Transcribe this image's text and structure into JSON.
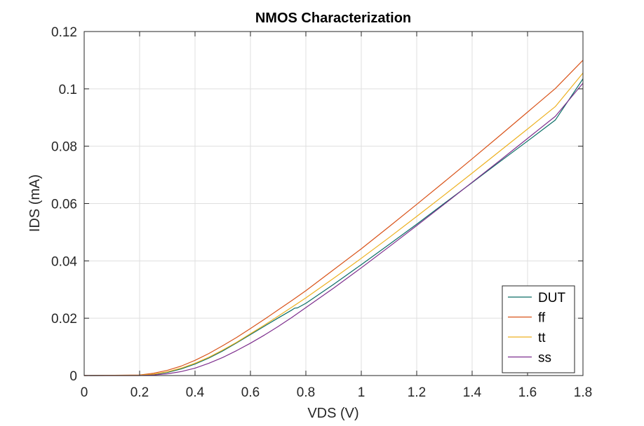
{
  "chart_data": {
    "type": "line",
    "title": "NMOS Characterization",
    "xlabel": "VDS (V)",
    "ylabel": "IDS (mA)",
    "xlim": [
      0,
      1.8
    ],
    "ylim": [
      0,
      0.12
    ],
    "xticks": [
      0,
      0.2,
      0.4,
      0.6,
      0.8,
      1,
      1.2,
      1.4,
      1.6,
      1.8
    ],
    "xtick_labels": [
      "0",
      "0.2",
      "0.4",
      "0.6",
      "0.8",
      "1",
      "1.2",
      "1.4",
      "1.6",
      "1.8"
    ],
    "yticks": [
      0,
      0.02,
      0.04,
      0.06,
      0.08,
      0.1,
      0.12
    ],
    "ytick_labels": [
      "0",
      "0.02",
      "0.04",
      "0.06",
      "0.08",
      "0.1",
      "0.12"
    ],
    "grid": true,
    "legend_position": "bottom-right",
    "series": [
      {
        "name": "DUT",
        "color": "#0b6e66",
        "x": [
          0,
          0.2,
          0.25,
          0.3,
          0.35,
          0.4,
          0.45,
          0.5,
          0.55,
          0.6,
          0.65,
          0.7,
          0.75,
          0.76,
          0.77,
          0.8,
          0.9,
          1.0,
          1.1,
          1.2,
          1.3,
          1.4,
          1.5,
          1.6,
          1.7,
          1.8
        ],
        "y": [
          0,
          0.0001,
          0.0004,
          0.0011,
          0.0023,
          0.004,
          0.0061,
          0.0086,
          0.0114,
          0.0143,
          0.0172,
          0.0201,
          0.0229,
          0.0235,
          0.0236,
          0.0252,
          0.0318,
          0.0387,
          0.0457,
          0.0528,
          0.0601,
          0.0673,
          0.0746,
          0.0818,
          0.0891,
          0.1035
        ]
      },
      {
        "name": "ff",
        "color": "#d95319",
        "x": [
          0,
          0.2,
          0.25,
          0.3,
          0.35,
          0.4,
          0.45,
          0.5,
          0.55,
          0.6,
          0.65,
          0.7,
          0.75,
          0.8,
          0.9,
          1.0,
          1.1,
          1.2,
          1.3,
          1.4,
          1.5,
          1.6,
          1.7,
          1.8
        ],
        "y": [
          0,
          0.0002,
          0.0008,
          0.0018,
          0.0033,
          0.0053,
          0.0077,
          0.0104,
          0.0133,
          0.0164,
          0.0196,
          0.0229,
          0.0262,
          0.0296,
          0.0369,
          0.0442,
          0.0519,
          0.0597,
          0.0676,
          0.0756,
          0.0837,
          0.0919,
          0.1001,
          0.11
        ]
      },
      {
        "name": "tt",
        "color": "#edb120",
        "x": [
          0,
          0.2,
          0.25,
          0.3,
          0.35,
          0.4,
          0.45,
          0.5,
          0.55,
          0.6,
          0.65,
          0.7,
          0.75,
          0.8,
          0.9,
          1.0,
          1.1,
          1.2,
          1.3,
          1.4,
          1.5,
          1.6,
          1.7,
          1.8
        ],
        "y": [
          0,
          0.0001,
          0.0005,
          0.0013,
          0.0026,
          0.0043,
          0.0064,
          0.0089,
          0.0116,
          0.0146,
          0.0176,
          0.0207,
          0.0239,
          0.0271,
          0.0339,
          0.0409,
          0.0481,
          0.0555,
          0.063,
          0.0706,
          0.0783,
          0.086,
          0.0938,
          0.1055
        ]
      },
      {
        "name": "ss",
        "color": "#7e2f8e",
        "x": [
          0,
          0.2,
          0.25,
          0.3,
          0.35,
          0.4,
          0.45,
          0.5,
          0.55,
          0.6,
          0.65,
          0.7,
          0.75,
          0.8,
          0.9,
          1.0,
          1.1,
          1.2,
          1.3,
          1.4,
          1.5,
          1.6,
          1.7,
          1.8
        ],
        "y": [
          0,
          0.0,
          0.0002,
          0.0006,
          0.0014,
          0.0026,
          0.0043,
          0.0063,
          0.0087,
          0.0113,
          0.0141,
          0.0171,
          0.0203,
          0.0237,
          0.0305,
          0.0376,
          0.0449,
          0.0523,
          0.0598,
          0.0674,
          0.075,
          0.0827,
          0.0904,
          0.102
        ]
      }
    ]
  }
}
